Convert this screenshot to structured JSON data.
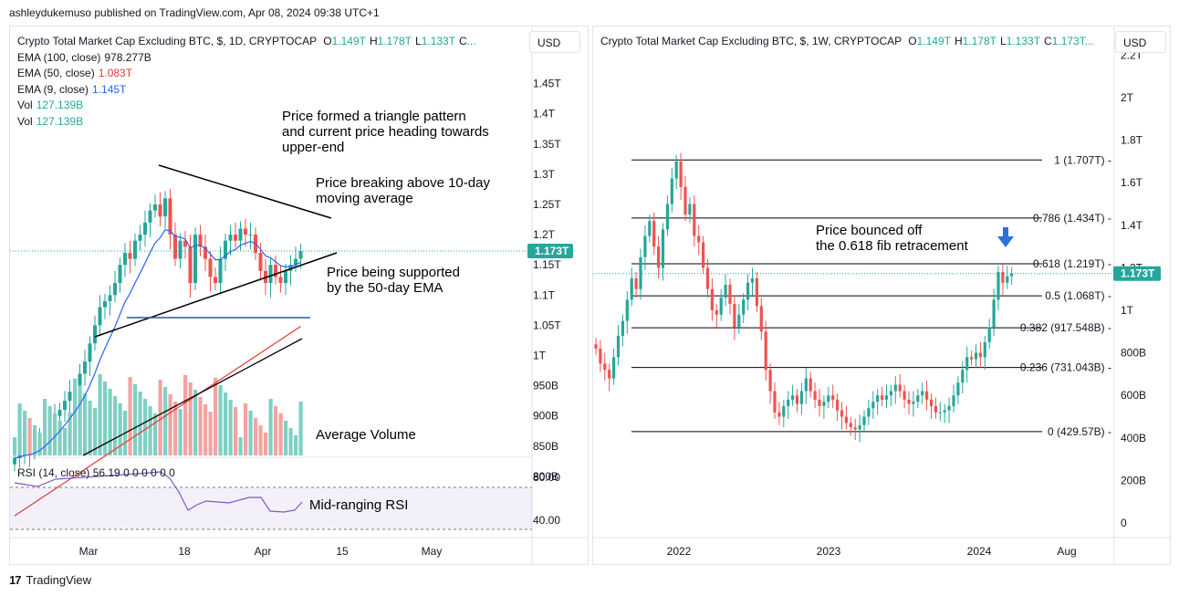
{
  "header": {
    "published": "ashleydukemuso published on TradingView.com, Apr 08, 2024 09:38 UTC+1"
  },
  "footer": {
    "brand": "TradingView",
    "logo": "17"
  },
  "colors": {
    "up": "#26a69a",
    "down": "#ef5350",
    "vol_up": "#7fcfc4",
    "vol_down": "#f3a3a1",
    "ema9": "#2962ff",
    "ema50": "#e53935",
    "ema100": "#000000",
    "rsi": "#7e57c2",
    "price_tag": "#26a69a"
  },
  "left": {
    "title": "Crypto Total Market Cap Excluding BTC, $, 1D, CRYPTOCAP",
    "ohlc": [
      {
        "k": "O",
        "v": "1.149T"
      },
      {
        "k": "H",
        "v": "1.178T"
      },
      {
        "k": "L",
        "v": "1.133T"
      },
      {
        "k": "C",
        "v": "..."
      }
    ],
    "currency": "USD",
    "legend_lines": [
      {
        "label": "EMA (100, close)",
        "value": "978.277B",
        "color": "#131722"
      },
      {
        "label": "EMA (50, close)",
        "value": "1.083T",
        "color": "#e53935"
      },
      {
        "label": "EMA (9, close)",
        "value": "1.145T",
        "color": "#2962ff"
      },
      {
        "label": "Vol",
        "value": "127.139B",
        "color": "#26a69a"
      },
      {
        "label": "Vol",
        "value": "127.139B",
        "color": "#26a69a"
      }
    ],
    "price_tag": "1.173T",
    "rsi_legend": {
      "label": "RSI (14, close)",
      "values": [
        "56.19",
        "0",
        "0",
        "0",
        "0",
        "0",
        "0"
      ]
    },
    "rsi_ticks": [
      "80.00",
      "40.00"
    ],
    "annotations": [
      "Price formed a triangle pattern\nand current price heading towards\nupper-end",
      "Price breaking above 10-day\nmoving average",
      "Price being supported\nby the 50-day EMA",
      "Average Volume",
      "Mid-ranging RSI"
    ]
  },
  "right": {
    "title": "Crypto Total Market Cap Excluding BTC, $, 1W, CRYPTOCAP",
    "ohlc": [
      {
        "k": "O",
        "v": "1.149T"
      },
      {
        "k": "H",
        "v": "1.178T"
      },
      {
        "k": "L",
        "v": "1.133T"
      },
      {
        "k": "C",
        "v": "1.173T..."
      }
    ],
    "currency": "USD",
    "price_tag": "1.173T",
    "annotation": "Price bounced off\nthe 0.618 fib retracement",
    "fib_levels": [
      {
        "ratio": 1,
        "label": "1 (1.707T)",
        "value": 1.707
      },
      {
        "ratio": 0.786,
        "label": "0.786 (1.434T)",
        "value": 1.434
      },
      {
        "ratio": 0.618,
        "label": "0.618 (1.219T)",
        "value": 1.219
      },
      {
        "ratio": 0.5,
        "label": "0.5 (1.068T)",
        "value": 1.068
      },
      {
        "ratio": 0.382,
        "label": "0.382 (917.548B)",
        "value": 0.918
      },
      {
        "ratio": 0.236,
        "label": "0.236 (731.043B)",
        "value": 0.731
      },
      {
        "ratio": 0,
        "label": "0 (429.57B)",
        "value": 0.4296
      }
    ]
  },
  "chart_data": [
    {
      "type": "candlestick",
      "title": "Crypto Total Market Cap Excluding BTC, $, 1D, CRYPTOCAP",
      "timeframe": "1D",
      "x_tick_labels": [
        "Mar",
        "18",
        "Apr",
        "15",
        "May"
      ],
      "y_tick_labels": [
        "1.45T",
        "1.4T",
        "1.35T",
        "1.3T",
        "1.25T",
        "1.2T",
        "1.15T",
        "1.1T",
        "1.05T",
        "1T",
        "950B",
        "900B",
        "850B",
        "800B"
      ],
      "ylim": [
        0.78,
        1.46
      ],
      "last_price": 1.173,
      "close_series": [
        0.83,
        0.84,
        0.845,
        0.84,
        0.85,
        0.86,
        0.875,
        0.89,
        0.9,
        0.91,
        0.925,
        0.94,
        0.95,
        0.97,
        0.99,
        1.02,
        1.05,
        1.08,
        1.09,
        1.1,
        1.12,
        1.15,
        1.17,
        1.16,
        1.19,
        1.2,
        1.22,
        1.24,
        1.25,
        1.23,
        1.26,
        1.2,
        1.16,
        1.19,
        1.18,
        1.12,
        1.2,
        1.18,
        1.16,
        1.13,
        1.12,
        1.16,
        1.19,
        1.2,
        1.19,
        1.21,
        1.2,
        1.2,
        1.17,
        1.14,
        1.12,
        1.15,
        1.13,
        1.12,
        1.14,
        1.15,
        1.16,
        1.173
      ],
      "ema9_label": "EMA (9, close)",
      "ema50_label": "EMA (50, close)",
      "ema100_label": "EMA (100, close)",
      "volume_label": "Vol",
      "rsi": {
        "label": "RSI (14, close)",
        "value": 56.19,
        "band": [
          40,
          80
        ]
      }
    },
    {
      "type": "candlestick",
      "title": "Crypto Total Market Cap Excluding BTC, $, 1W, CRYPTOCAP",
      "timeframe": "1W",
      "x_tick_labels": [
        "2022",
        "2023",
        "2024",
        "Aug"
      ],
      "y_tick_labels": [
        "2.2T",
        "2T",
        "1.8T",
        "1.6T",
        "1.4T",
        "1.2T",
        "1T",
        "800B",
        "600B",
        "400B",
        "200B",
        "0"
      ],
      "ylim": [
        0,
        2.22
      ],
      "last_price": 1.173,
      "close_series": [
        0.82,
        0.75,
        0.72,
        0.68,
        0.78,
        0.88,
        0.95,
        1.05,
        1.15,
        1.1,
        1.25,
        1.35,
        1.42,
        1.3,
        1.2,
        1.38,
        1.5,
        1.62,
        1.7,
        1.58,
        1.45,
        1.5,
        1.35,
        1.32,
        1.2,
        1.1,
        1.0,
        0.98,
        1.06,
        1.12,
        1.03,
        0.92,
        0.98,
        1.05,
        1.13,
        1.15,
        1.02,
        0.9,
        0.72,
        0.62,
        0.52,
        0.5,
        0.55,
        0.58,
        0.6,
        0.56,
        0.62,
        0.68,
        0.62,
        0.58,
        0.55,
        0.57,
        0.6,
        0.58,
        0.53,
        0.5,
        0.47,
        0.45,
        0.44,
        0.46,
        0.5,
        0.54,
        0.57,
        0.6,
        0.58,
        0.6,
        0.62,
        0.65,
        0.62,
        0.58,
        0.56,
        0.57,
        0.6,
        0.62,
        0.58,
        0.55,
        0.52,
        0.52,
        0.53,
        0.55,
        0.6,
        0.66,
        0.72,
        0.78,
        0.77,
        0.8,
        0.78,
        0.85,
        0.92,
        1.05,
        1.18,
        1.13,
        1.16,
        1.173
      ]
    }
  ]
}
